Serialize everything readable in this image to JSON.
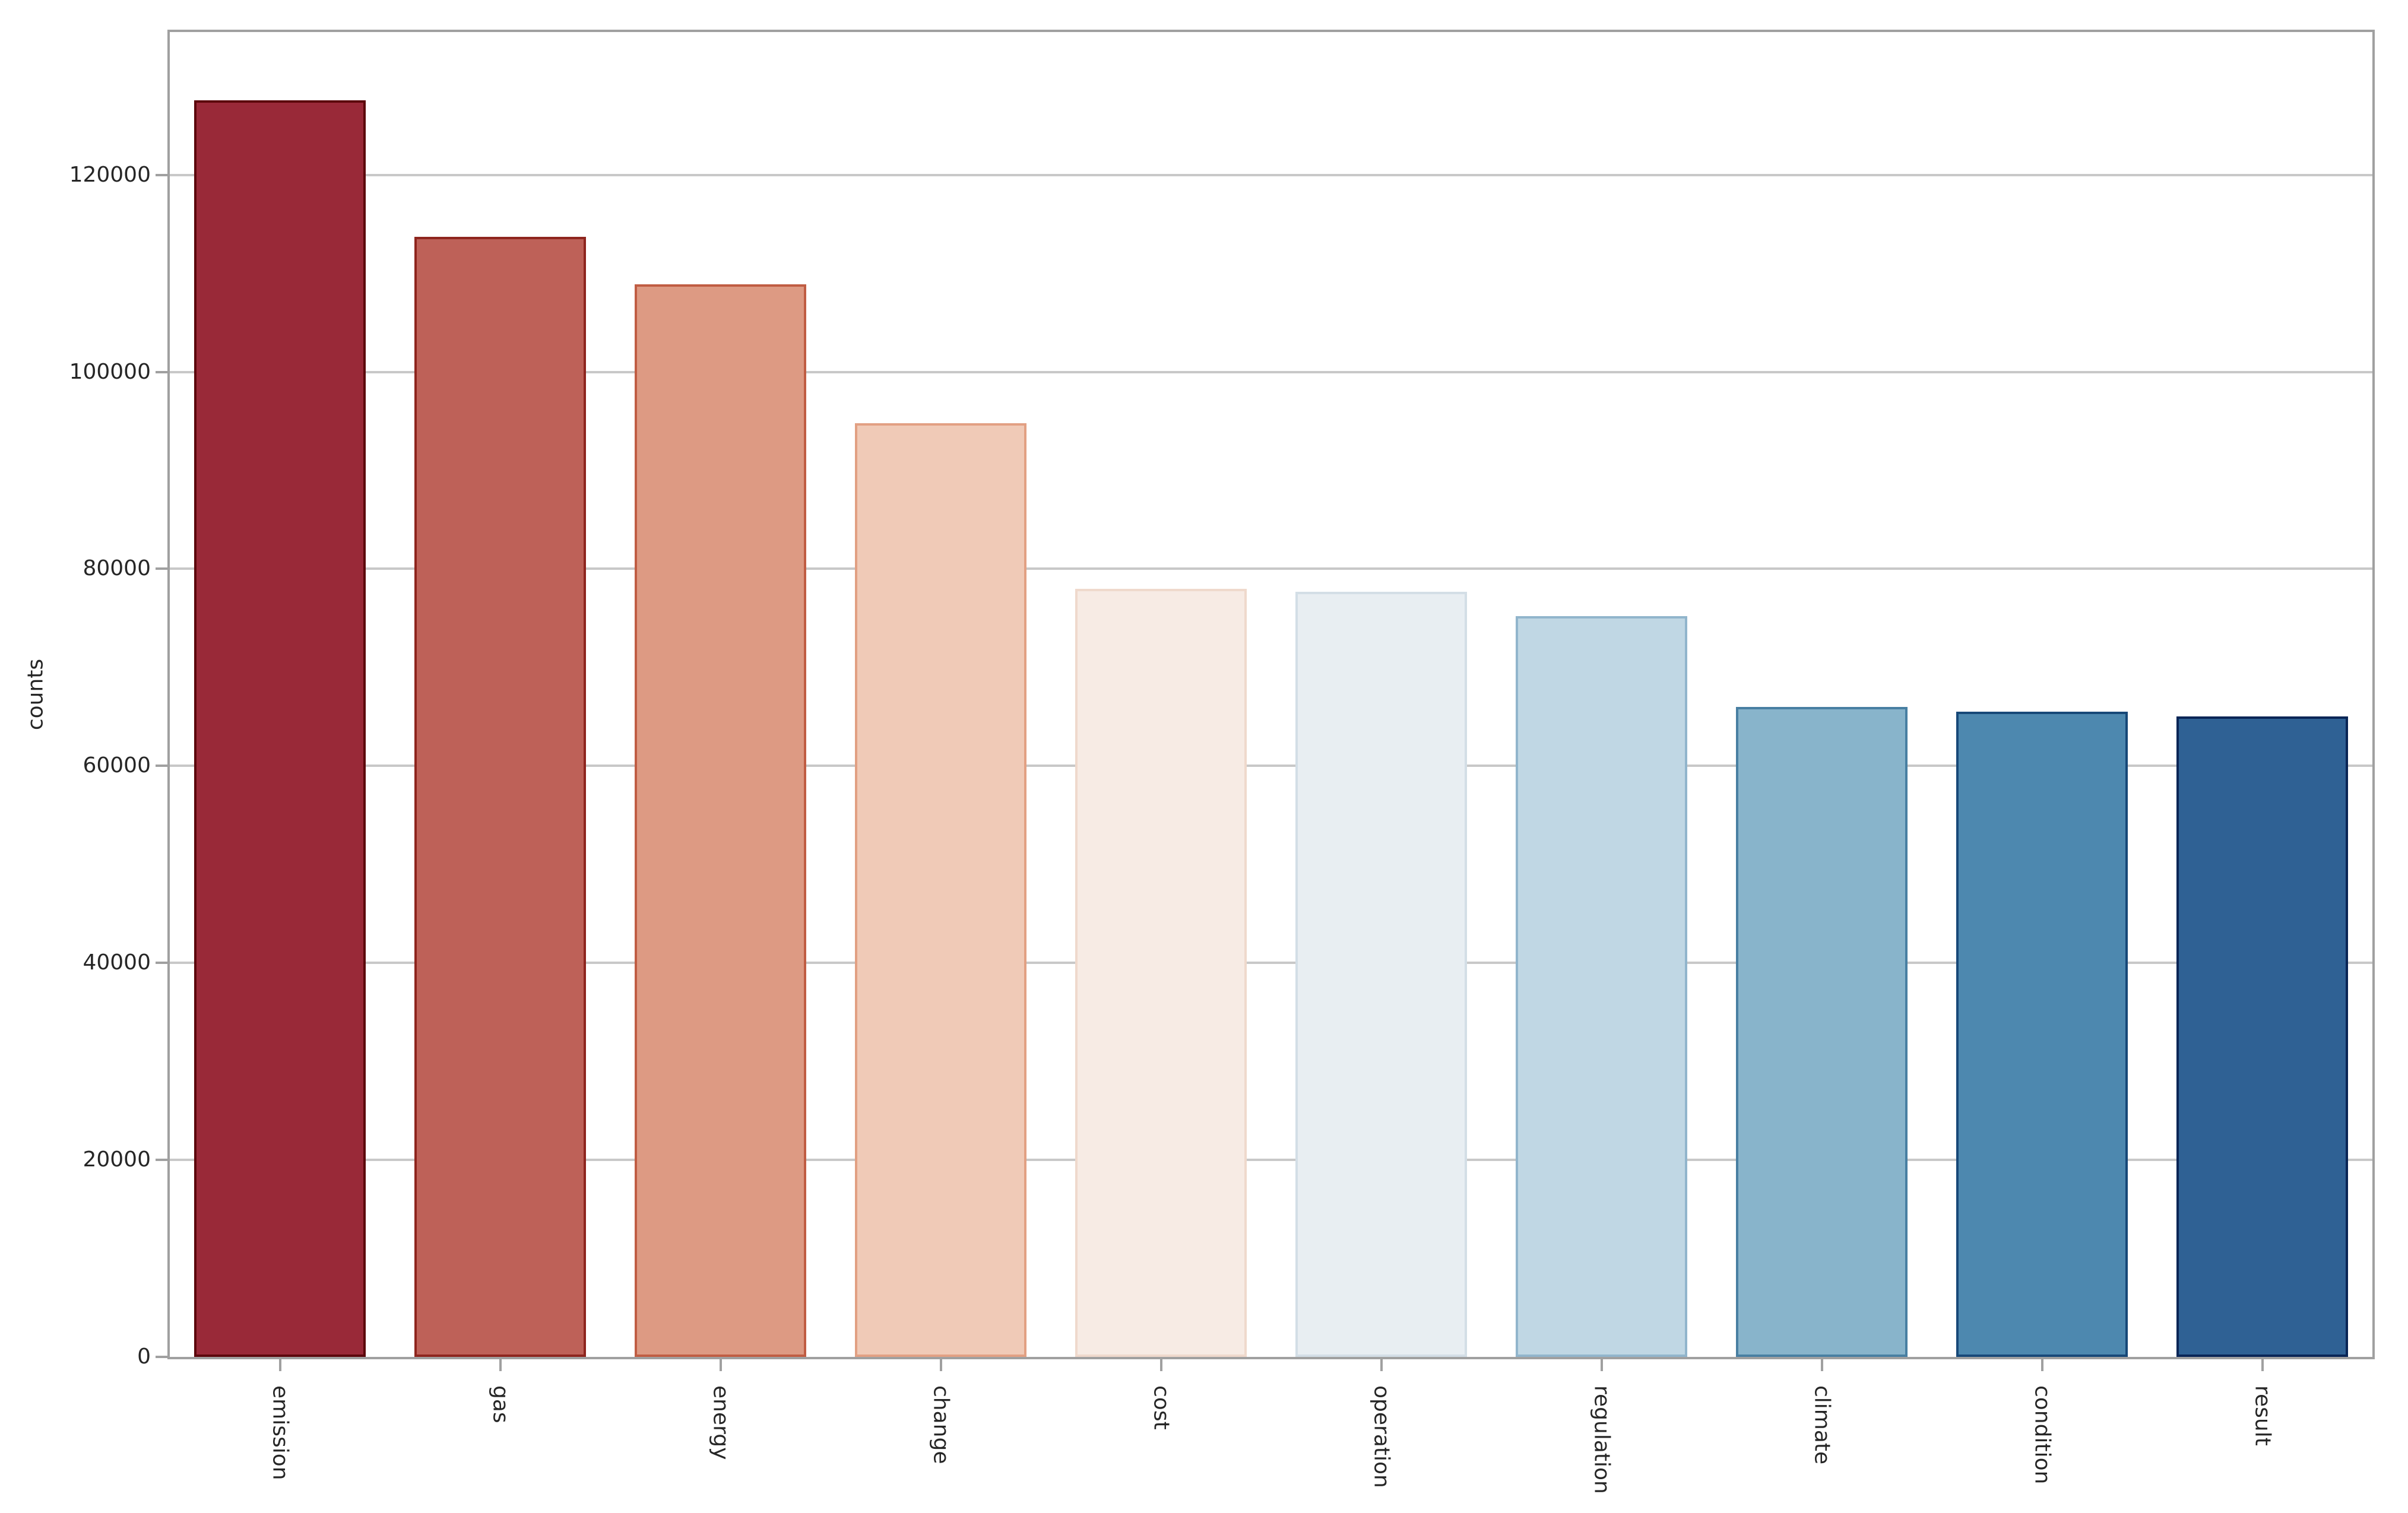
{
  "chart_data": {
    "type": "bar",
    "title": "",
    "xlabel": "",
    "ylabel": "counts",
    "categories": [
      "emission",
      "gas",
      "energy",
      "change",
      "cost",
      "operation",
      "regulation",
      "climate",
      "condition",
      "result"
    ],
    "values": [
      127600,
      113700,
      108900,
      94800,
      78000,
      77700,
      75200,
      66000,
      65500,
      65000
    ],
    "bar_colors": [
      "#992938",
      "#be6158",
      "#dd9a83",
      "#f0cab7",
      "#f7ebe4",
      "#e8eef2",
      "#c0d7e4",
      "#88b4cb",
      "#4d88af",
      "#2f6194"
    ],
    "bar_edge_colors": [
      "#5c070c",
      "#8e251e",
      "#c05d43",
      "#e2a083",
      "#efd9cc",
      "#d3dee6",
      "#91b5cc",
      "#487fa2",
      "#174878",
      "#092556"
    ],
    "yticks": [
      0,
      20000,
      40000,
      60000,
      80000,
      100000,
      120000
    ],
    "ytick_labels": [
      "0",
      "20000",
      "40000",
      "60000",
      "80000",
      "100000",
      "120000"
    ],
    "ylim": [
      0,
      134500
    ],
    "bar_width_fraction": 0.78,
    "grid": "horizontal",
    "legend": "none",
    "x_label_rotation_reading": "top-to-bottom",
    "y_label_rotation_reading": "bottom-to-top"
  },
  "colors": {
    "background": "#ffffff",
    "grid": "#c8c8c8",
    "spine": "#a0a0a0",
    "tick_mark": "#a0a0a0",
    "text": "#262626"
  }
}
